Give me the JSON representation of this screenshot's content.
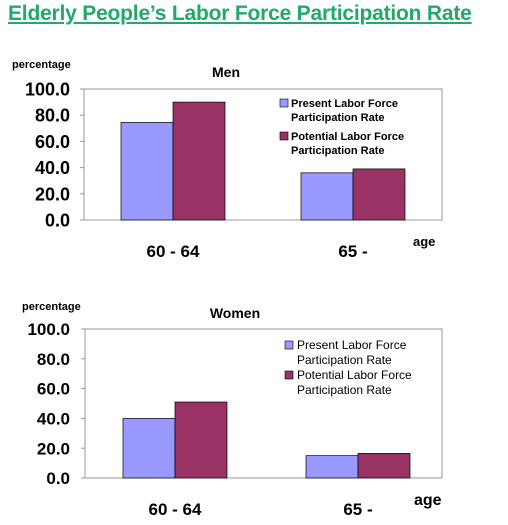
{
  "page": {
    "title": "Elderly People’s Labor Force Participation Rate"
  },
  "colors": {
    "title": "#1faa6a",
    "present": "#9999ff",
    "potential": "#993366",
    "plot_border": "#999999"
  },
  "chart_data": [
    {
      "type": "bar",
      "title": "Men",
      "ylabel": "percentage",
      "xlabel": "age",
      "ylim": [
        0,
        100
      ],
      "yticks": [
        "0.0",
        "20.0",
        "40.0",
        "60.0",
        "80.0",
        "100.0"
      ],
      "ytick_values": [
        0,
        20,
        40,
        60,
        80,
        100
      ],
      "categories": [
        "60 - 64",
        "65 -"
      ],
      "legend_position": "top-right",
      "grid": false,
      "series": [
        {
          "name": "Present Labor Force Participation Rate",
          "name_lines": [
            "Present Labor Force",
            "Participation Rate"
          ],
          "color": "#9999ff",
          "values": [
            74.5,
            36.0
          ]
        },
        {
          "name": "Potential Labor Force Participation Rate",
          "name_lines": [
            "Potential Labor Force",
            "Participation Rate"
          ],
          "color": "#993366",
          "values": [
            90.0,
            39.0
          ]
        }
      ]
    },
    {
      "type": "bar",
      "title": "Women",
      "ylabel": "percentage",
      "xlabel": "age",
      "ylim": [
        0,
        100
      ],
      "yticks": [
        "0.0",
        "20.0",
        "40.0",
        "60.0",
        "80.0",
        "100.0"
      ],
      "ytick_values": [
        0,
        20,
        40,
        60,
        80,
        100
      ],
      "categories": [
        "60 - 64",
        "65 -"
      ],
      "legend_position": "top-right",
      "grid": false,
      "series": [
        {
          "name": "Present Labor Force Participation Rate",
          "name_lines": [
            "Present Labor Force",
            "Participation Rate"
          ],
          "color": "#9999ff",
          "values": [
            40.0,
            15.0
          ]
        },
        {
          "name": "Potential Labor Force Participation Rate",
          "name_lines": [
            "Potential Labor Force",
            "Participation Rate"
          ],
          "color": "#993366",
          "values": [
            51.0,
            16.5
          ]
        }
      ]
    }
  ]
}
